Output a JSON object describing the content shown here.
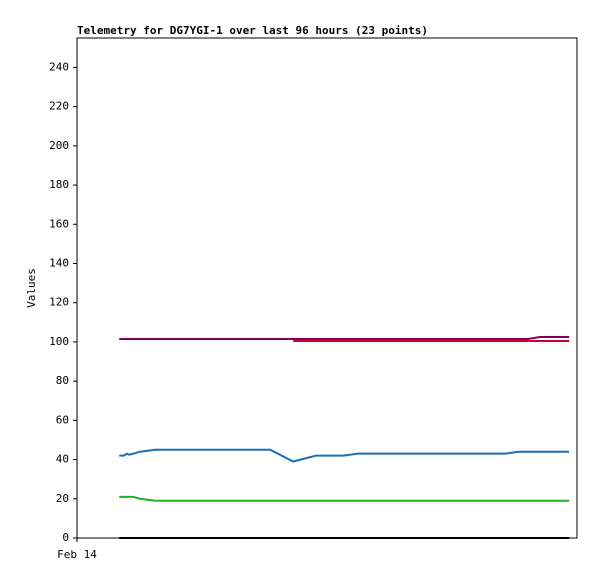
{
  "chart_data": {
    "type": "line",
    "title": "Telemetry for DG7YGI-1 over last 96 hours (23 points)",
    "ylabel": "Values",
    "x": [
      8.1,
      9.0,
      9.6,
      10.0,
      10.8,
      12.1,
      15.0,
      19.8,
      27.5,
      37.1,
      41.5,
      45.9,
      51.1,
      54.0,
      62.0,
      71.6,
      82.2,
      84.7,
      86.6,
      88.9,
      91.8,
      93.1,
      94.5
    ],
    "xlim": [
      0,
      96
    ],
    "xticks": [
      {
        "value": 0,
        "label": "Feb 14"
      }
    ],
    "ylim": [
      0,
      255
    ],
    "yticks": [
      0,
      20,
      40,
      60,
      80,
      100,
      120,
      140,
      160,
      180,
      200,
      220,
      240
    ],
    "series": [
      {
        "color": "#000000",
        "values": [
          0,
          0,
          0,
          0,
          0,
          0,
          0,
          0,
          0,
          0,
          0,
          0,
          0,
          0,
          0,
          0,
          0,
          0,
          0,
          0,
          0,
          0,
          0
        ]
      },
      {
        "color": "#22b022",
        "values": [
          21,
          21,
          21,
          21,
          21,
          20,
          19,
          19,
          19,
          19,
          19,
          19,
          19,
          19,
          19,
          19,
          19,
          19,
          19,
          19,
          19,
          19,
          19
        ]
      },
      {
        "color": "#1a6fb0",
        "values": [
          42,
          42,
          43,
          42.5,
          43,
          44,
          45,
          45,
          45,
          45,
          39,
          42,
          42,
          43,
          43,
          43,
          43,
          44,
          44,
          44,
          44,
          44,
          44
        ]
      },
      {
        "color": "#800060",
        "values": [
          101.5,
          101.5,
          101.5,
          101.5,
          101.5,
          101.5,
          101.5,
          101.5,
          101.5,
          101.5,
          101.5,
          101.5,
          101.5,
          101.5,
          101.5,
          101.5,
          101.5,
          101.5,
          101.5,
          102.5,
          102.5,
          102.5,
          102.5
        ]
      },
      {
        "color": "#cc0033",
        "values": [
          null,
          null,
          null,
          null,
          null,
          null,
          null,
          null,
          null,
          null,
          100.5,
          100.5,
          100.5,
          100.5,
          100.5,
          100.5,
          100.5,
          100.5,
          100.5,
          100.5,
          100.5,
          100.5,
          100.5
        ]
      }
    ]
  }
}
